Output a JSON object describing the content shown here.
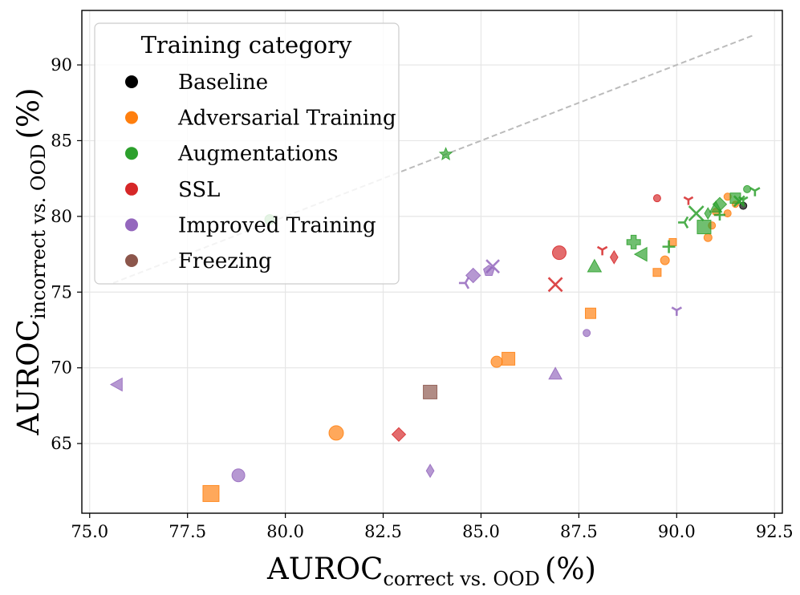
{
  "chart_data": {
    "type": "scatter",
    "xlabel": {
      "main": "AUROC",
      "sub": "correct vs. OOD",
      "unit": "(%)"
    },
    "ylabel": {
      "main": "AUROC",
      "sub": "incorrect vs. OOD",
      "unit": "(%)"
    },
    "xlim": [
      74.8,
      92.7
    ],
    "ylim": [
      60.4,
      93.6
    ],
    "xticks": [
      "75.0",
      "77.5",
      "80.0",
      "82.5",
      "85.0",
      "87.5",
      "90.0",
      "92.5"
    ],
    "yticks": [
      "65",
      "70",
      "75",
      "80",
      "85",
      "90"
    ],
    "xtick_values": [
      75.0,
      77.5,
      80.0,
      82.5,
      85.0,
      87.5,
      90.0,
      92.5
    ],
    "ytick_values": [
      65,
      70,
      75,
      80,
      85,
      90
    ],
    "grid": true,
    "diagonal": {
      "from": [
        75.6,
        75.6
      ],
      "to": [
        92.0,
        92.0
      ],
      "style": "dashed",
      "color": "#bbbbbb"
    },
    "legend": {
      "title": "Training category",
      "position": "top-left",
      "entries": [
        {
          "label": "Baseline",
          "color": "#000000"
        },
        {
          "label": "Adversarial Training",
          "color": "#ff7f0e"
        },
        {
          "label": "Augmentations",
          "color": "#2ca02c"
        },
        {
          "label": "SSL",
          "color": "#d62728"
        },
        {
          "label": "Improved Training",
          "color": "#9467bd"
        },
        {
          "label": "Freezing",
          "color": "#8c564b"
        }
      ]
    },
    "points": [
      {
        "x": 91.7,
        "y": 80.7,
        "cat": 0,
        "m": "circle",
        "s": 9
      },
      {
        "x": 78.1,
        "y": 61.7,
        "cat": 1,
        "m": "square",
        "s": 20
      },
      {
        "x": 81.3,
        "y": 65.7,
        "cat": 1,
        "m": "circle",
        "s": 18
      },
      {
        "x": 85.7,
        "y": 70.6,
        "cat": 1,
        "m": "square",
        "s": 16
      },
      {
        "x": 85.4,
        "y": 70.4,
        "cat": 1,
        "m": "circle",
        "s": 14
      },
      {
        "x": 87.8,
        "y": 73.6,
        "cat": 1,
        "m": "square",
        "s": 13
      },
      {
        "x": 89.7,
        "y": 77.1,
        "cat": 1,
        "m": "circle",
        "s": 11
      },
      {
        "x": 89.5,
        "y": 76.3,
        "cat": 1,
        "m": "square",
        "s": 10
      },
      {
        "x": 89.9,
        "y": 78.3,
        "cat": 1,
        "m": "square",
        "s": 9
      },
      {
        "x": 90.8,
        "y": 78.6,
        "cat": 1,
        "m": "circle",
        "s": 10
      },
      {
        "x": 90.9,
        "y": 79.4,
        "cat": 1,
        "m": "circle",
        "s": 9
      },
      {
        "x": 91.0,
        "y": 80.3,
        "cat": 1,
        "m": "circle",
        "s": 9
      },
      {
        "x": 91.3,
        "y": 80.2,
        "cat": 1,
        "m": "circle",
        "s": 9
      },
      {
        "x": 91.3,
        "y": 81.3,
        "cat": 1,
        "m": "circle",
        "s": 9
      },
      {
        "x": 91.5,
        "y": 80.8,
        "cat": 1,
        "m": "circle",
        "s": 8
      },
      {
        "x": 84.1,
        "y": 84.1,
        "cat": 2,
        "m": "star",
        "s": 16
      },
      {
        "x": 79.6,
        "y": 79.8,
        "cat": 2,
        "m": "circle",
        "s": 12
      },
      {
        "x": 87.9,
        "y": 76.7,
        "cat": 2,
        "m": "triangle",
        "s": 17
      },
      {
        "x": 88.9,
        "y": 78.3,
        "cat": 2,
        "m": "plus",
        "s": 17
      },
      {
        "x": 89.1,
        "y": 77.5,
        "cat": 2,
        "m": "triangle-left",
        "s": 17
      },
      {
        "x": 89.8,
        "y": 78.0,
        "cat": 2,
        "m": "thin-plus",
        "s": 16
      },
      {
        "x": 90.2,
        "y": 79.6,
        "cat": 2,
        "m": "tri-left",
        "s": 16
      },
      {
        "x": 90.5,
        "y": 80.2,
        "cat": 2,
        "m": "x",
        "s": 18
      },
      {
        "x": 90.7,
        "y": 79.3,
        "cat": 2,
        "m": "square",
        "s": 17
      },
      {
        "x": 90.8,
        "y": 80.2,
        "cat": 2,
        "m": "diamond-thin",
        "s": 14
      },
      {
        "x": 91.0,
        "y": 80.6,
        "cat": 2,
        "m": "triangle",
        "s": 15
      },
      {
        "x": 91.1,
        "y": 80.8,
        "cat": 2,
        "m": "diamond",
        "s": 17
      },
      {
        "x": 91.1,
        "y": 80.1,
        "cat": 2,
        "m": "thin-plus",
        "s": 14
      },
      {
        "x": 91.5,
        "y": 81.2,
        "cat": 2,
        "m": "square",
        "s": 13
      },
      {
        "x": 91.6,
        "y": 81.0,
        "cat": 2,
        "m": "x",
        "s": 13
      },
      {
        "x": 91.7,
        "y": 81.1,
        "cat": 2,
        "m": "tri-down",
        "s": 13
      },
      {
        "x": 91.8,
        "y": 81.8,
        "cat": 2,
        "m": "circle",
        "s": 9
      },
      {
        "x": 92.0,
        "y": 81.7,
        "cat": 2,
        "m": "tri-down",
        "s": 14
      },
      {
        "x": 82.9,
        "y": 65.6,
        "cat": 3,
        "m": "diamond",
        "s": 17
      },
      {
        "x": 86.9,
        "y": 75.5,
        "cat": 3,
        "m": "x",
        "s": 17
      },
      {
        "x": 87.0,
        "y": 77.6,
        "cat": 3,
        "m": "circle",
        "s": 17
      },
      {
        "x": 88.1,
        "y": 77.8,
        "cat": 3,
        "m": "tri-down",
        "s": 14
      },
      {
        "x": 88.4,
        "y": 77.3,
        "cat": 3,
        "m": "diamond-thin",
        "s": 16
      },
      {
        "x": 89.5,
        "y": 81.2,
        "cat": 3,
        "m": "circle",
        "s": 9
      },
      {
        "x": 90.3,
        "y": 81.1,
        "cat": 3,
        "m": "tri-down",
        "s": 13
      },
      {
        "x": 75.7,
        "y": 68.9,
        "cat": 4,
        "m": "triangle-left",
        "s": 16
      },
      {
        "x": 78.8,
        "y": 62.9,
        "cat": 4,
        "m": "circle",
        "s": 16
      },
      {
        "x": 83.7,
        "y": 63.2,
        "cat": 4,
        "m": "diamond-thin",
        "s": 16
      },
      {
        "x": 84.6,
        "y": 75.6,
        "cat": 4,
        "m": "tri-left",
        "s": 16
      },
      {
        "x": 84.8,
        "y": 76.1,
        "cat": 4,
        "m": "diamond",
        "s": 18
      },
      {
        "x": 85.2,
        "y": 76.4,
        "cat": 4,
        "m": "pentagon",
        "s": 14
      },
      {
        "x": 85.3,
        "y": 76.7,
        "cat": 4,
        "m": "x",
        "s": 16
      },
      {
        "x": 86.9,
        "y": 69.6,
        "cat": 4,
        "m": "triangle",
        "s": 16
      },
      {
        "x": 87.7,
        "y": 72.3,
        "cat": 4,
        "m": "circle",
        "s": 9
      },
      {
        "x": 90.0,
        "y": 73.8,
        "cat": 4,
        "m": "tri-down",
        "s": 14
      },
      {
        "x": 83.7,
        "y": 68.4,
        "cat": 5,
        "m": "square",
        "s": 17
      }
    ]
  }
}
